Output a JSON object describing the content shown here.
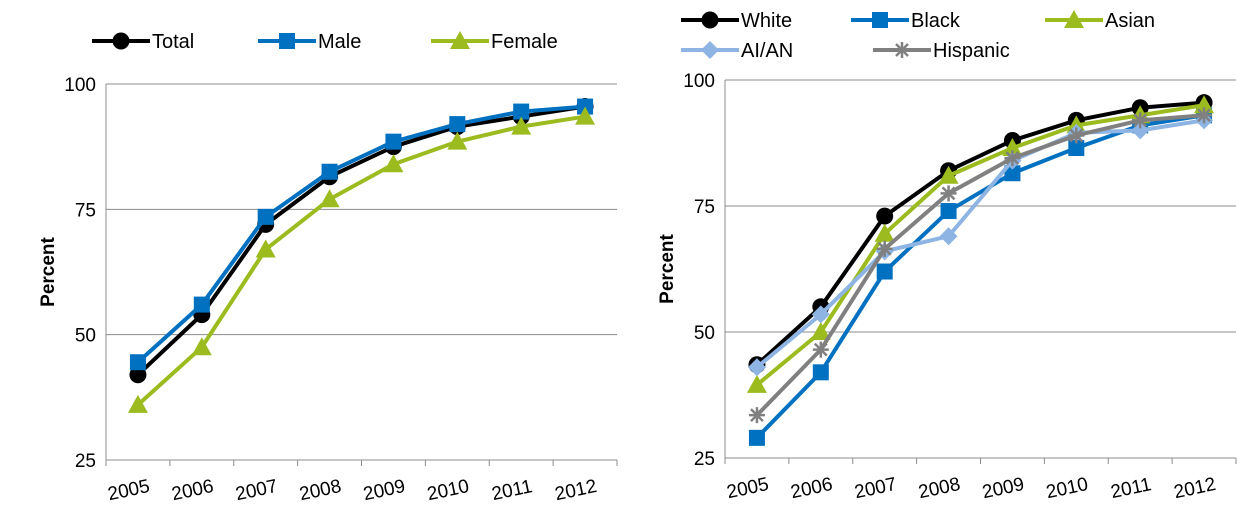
{
  "chart_data": [
    {
      "type": "line",
      "x": [
        "2005",
        "2006",
        "2007",
        "2008",
        "2009",
        "2010",
        "2011",
        "2012"
      ],
      "ylabel": "Percent",
      "ylim": [
        25,
        100
      ],
      "yticks": [
        25,
        50,
        75,
        100
      ],
      "grid": "horizontal",
      "legend": "top",
      "series": [
        {
          "name": "Total",
          "color": "#000000",
          "marker": "circle",
          "values": [
            42,
            54,
            72,
            81.5,
            87.5,
            91.5,
            93.5,
            95.5
          ]
        },
        {
          "name": "Male",
          "color": "#0070C0",
          "marker": "square",
          "values": [
            44.5,
            56,
            73.5,
            82.5,
            88.5,
            92,
            94.5,
            95.5
          ]
        },
        {
          "name": "Female",
          "color": "#9BBB1F",
          "marker": "triangle",
          "values": [
            36,
            47.5,
            67,
            77,
            84,
            88.5,
            91.5,
            93.5
          ]
        }
      ]
    },
    {
      "type": "line",
      "x": [
        "2005",
        "2006",
        "2007",
        "2008",
        "2009",
        "2010",
        "2011",
        "2012"
      ],
      "ylabel": "Percent",
      "ylim": [
        25,
        100
      ],
      "yticks": [
        25,
        50,
        75,
        100
      ],
      "grid": "horizontal",
      "legend": "top",
      "series": [
        {
          "name": "White",
          "color": "#000000",
          "marker": "circle",
          "values": [
            43.5,
            55,
            73,
            82,
            88,
            92,
            94.5,
            95.5
          ]
        },
        {
          "name": "Black",
          "color": "#0070C0",
          "marker": "square",
          "values": [
            29,
            42,
            62,
            74,
            81.5,
            86.5,
            91,
            93
          ]
        },
        {
          "name": "Asian",
          "color": "#9BBB1F",
          "marker": "triangle",
          "values": [
            39.5,
            50,
            69.5,
            81,
            86.5,
            91,
            93,
            95
          ]
        },
        {
          "name": "AI/AN",
          "color": "#8DB4E2",
          "marker": "diamond",
          "values": [
            43,
            53.5,
            66,
            69,
            84,
            89.5,
            90,
            92
          ]
        },
        {
          "name": "Hispanic",
          "color": "#808080",
          "marker": "star",
          "values": [
            33.5,
            46.5,
            66.5,
            77.5,
            84.5,
            89,
            92,
            93
          ]
        }
      ]
    }
  ]
}
